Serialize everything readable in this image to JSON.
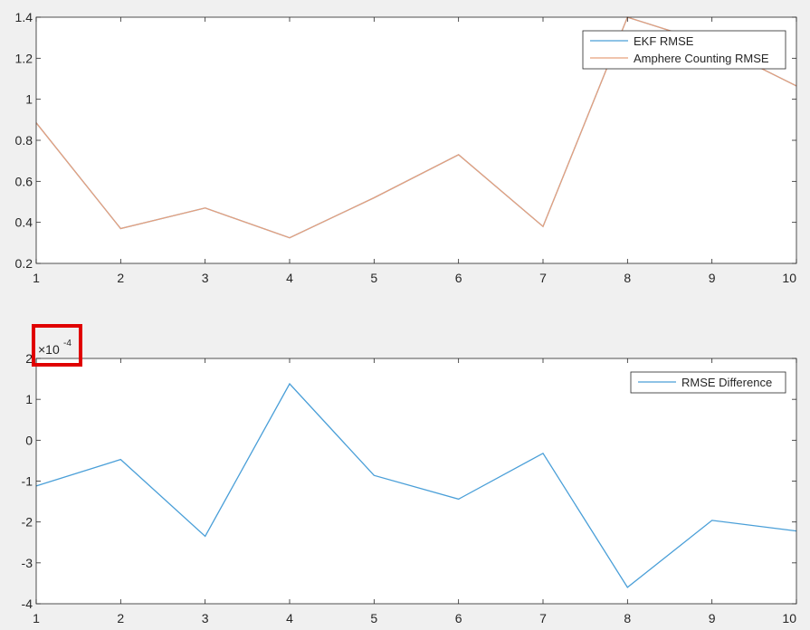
{
  "colors": {
    "figure_bg": "#f0f0f0",
    "axes_bg": "#ffffff",
    "axis": "#262626",
    "highlight": "#e00000"
  },
  "chart_data": [
    {
      "type": "line",
      "x": [
        1,
        2,
        3,
        4,
        5,
        6,
        7,
        8,
        9,
        10
      ],
      "xlim": [
        1,
        10
      ],
      "ylim": [
        0.2,
        1.4
      ],
      "xticks": [
        "1",
        "2",
        "3",
        "4",
        "5",
        "6",
        "7",
        "8",
        "9",
        "10"
      ],
      "yticks": [
        "0.2",
        "0.4",
        "0.6",
        "0.8",
        "1",
        "1.2",
        "1.4"
      ],
      "grid": false,
      "legend_position": "top-right",
      "series": [
        {
          "name": "EKF RMSE",
          "color": "#4a9fd8",
          "values": [
            0.885,
            0.37,
            0.47,
            0.325,
            0.52,
            0.73,
            0.38,
            1.4,
            1.27,
            1.065
          ]
        },
        {
          "name": "Amphere Counting RMSE",
          "color": "#e8a07c",
          "values": [
            0.885,
            0.37,
            0.47,
            0.325,
            0.52,
            0.73,
            0.38,
            1.4,
            1.27,
            1.065
          ]
        }
      ]
    },
    {
      "type": "line",
      "x": [
        1,
        2,
        3,
        4,
        5,
        6,
        7,
        8,
        9,
        10
      ],
      "xlim": [
        1,
        10
      ],
      "ylim": [
        -4,
        2
      ],
      "xticks": [
        "1",
        "2",
        "3",
        "4",
        "5",
        "6",
        "7",
        "8",
        "9",
        "10"
      ],
      "yticks": [
        "-4",
        "-3",
        "-2",
        "-1",
        "0",
        "1",
        "2"
      ],
      "y_exponent": "-4",
      "grid": false,
      "legend_position": "top-right",
      "series": [
        {
          "name": "RMSE Difference",
          "color": "#4a9fd8",
          "values": [
            -1.12,
            -0.47,
            -2.35,
            1.38,
            -0.86,
            -1.44,
            -0.32,
            -3.6,
            -1.96,
            -2.22
          ]
        }
      ]
    }
  ]
}
